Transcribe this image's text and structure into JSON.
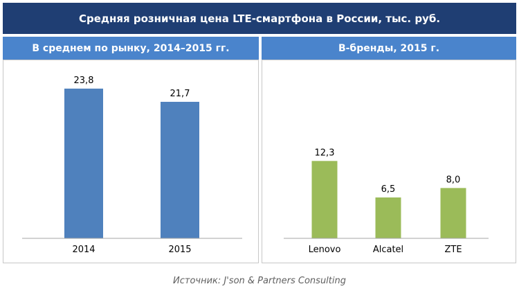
{
  "title": "Средняя розничная цена LTE-смартфона в России, тыс. руб.",
  "source": "Источник: J'son & Partners Consulting",
  "colors": {
    "header": "#1f3e73",
    "subheader": "#4a84cc",
    "left_bars": "#4f81bd",
    "right_bars": "#9bbb59"
  },
  "chart_data": [
    {
      "type": "bar",
      "title": "В среднем по рынку, 2014–2015 гг.",
      "categories": [
        "2014",
        "2015"
      ],
      "values": [
        23.8,
        21.7
      ],
      "value_labels": [
        "23,8",
        "21,7"
      ],
      "ylim": [
        0,
        25
      ],
      "grid": false
    },
    {
      "type": "bar",
      "title": "B-бренды, 2015 г.",
      "categories": [
        "Lenovo",
        "Alcatel",
        "ZTE"
      ],
      "values": [
        12.3,
        6.5,
        8.0
      ],
      "value_labels": [
        "12,3",
        "6,5",
        "8,0"
      ],
      "ylim": [
        0,
        25
      ],
      "grid": false
    }
  ]
}
